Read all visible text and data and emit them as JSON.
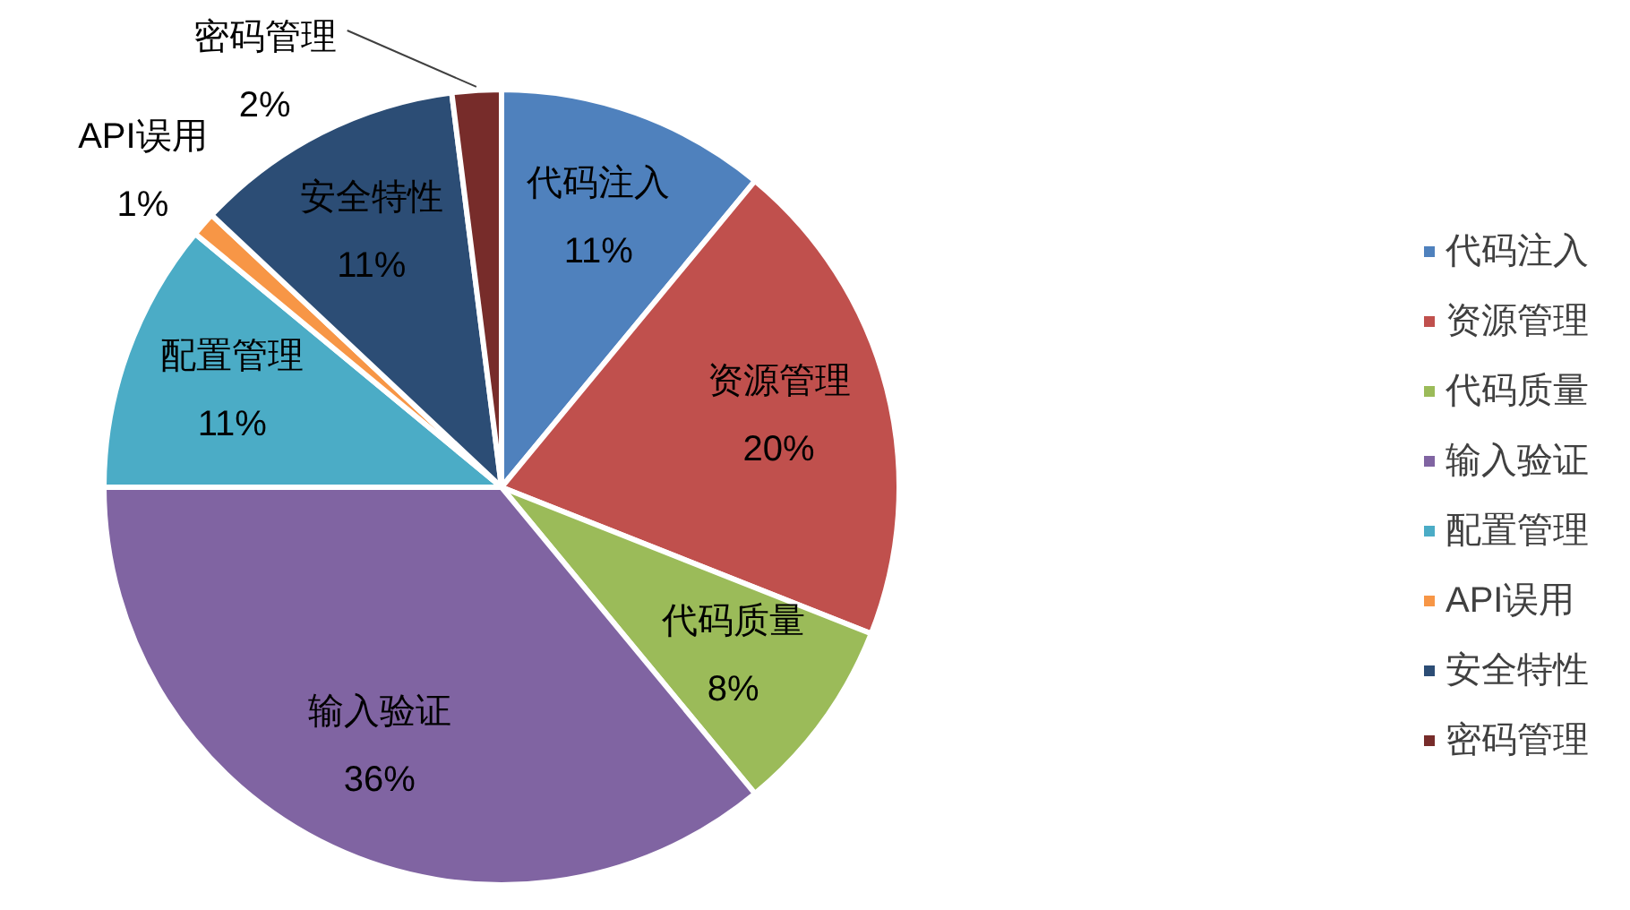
{
  "chart_data": {
    "type": "pie",
    "categories": [
      "代码注入",
      "资源管理",
      "代码质量",
      "输入验证",
      "配置管理",
      "API误用",
      "安全特性",
      "密码管理"
    ],
    "values": [
      11,
      20,
      8,
      36,
      11,
      1,
      11,
      2
    ],
    "colors": [
      "#4f81bd",
      "#c0504d",
      "#9bbb59",
      "#8064a2",
      "#4bacc6",
      "#f79646",
      "#2c4d75",
      "#772c2a"
    ],
    "value_labels": [
      "11%",
      "20%",
      "8%",
      "36%",
      "11%",
      "1%",
      "11%",
      "2%"
    ],
    "legend": "right"
  }
}
